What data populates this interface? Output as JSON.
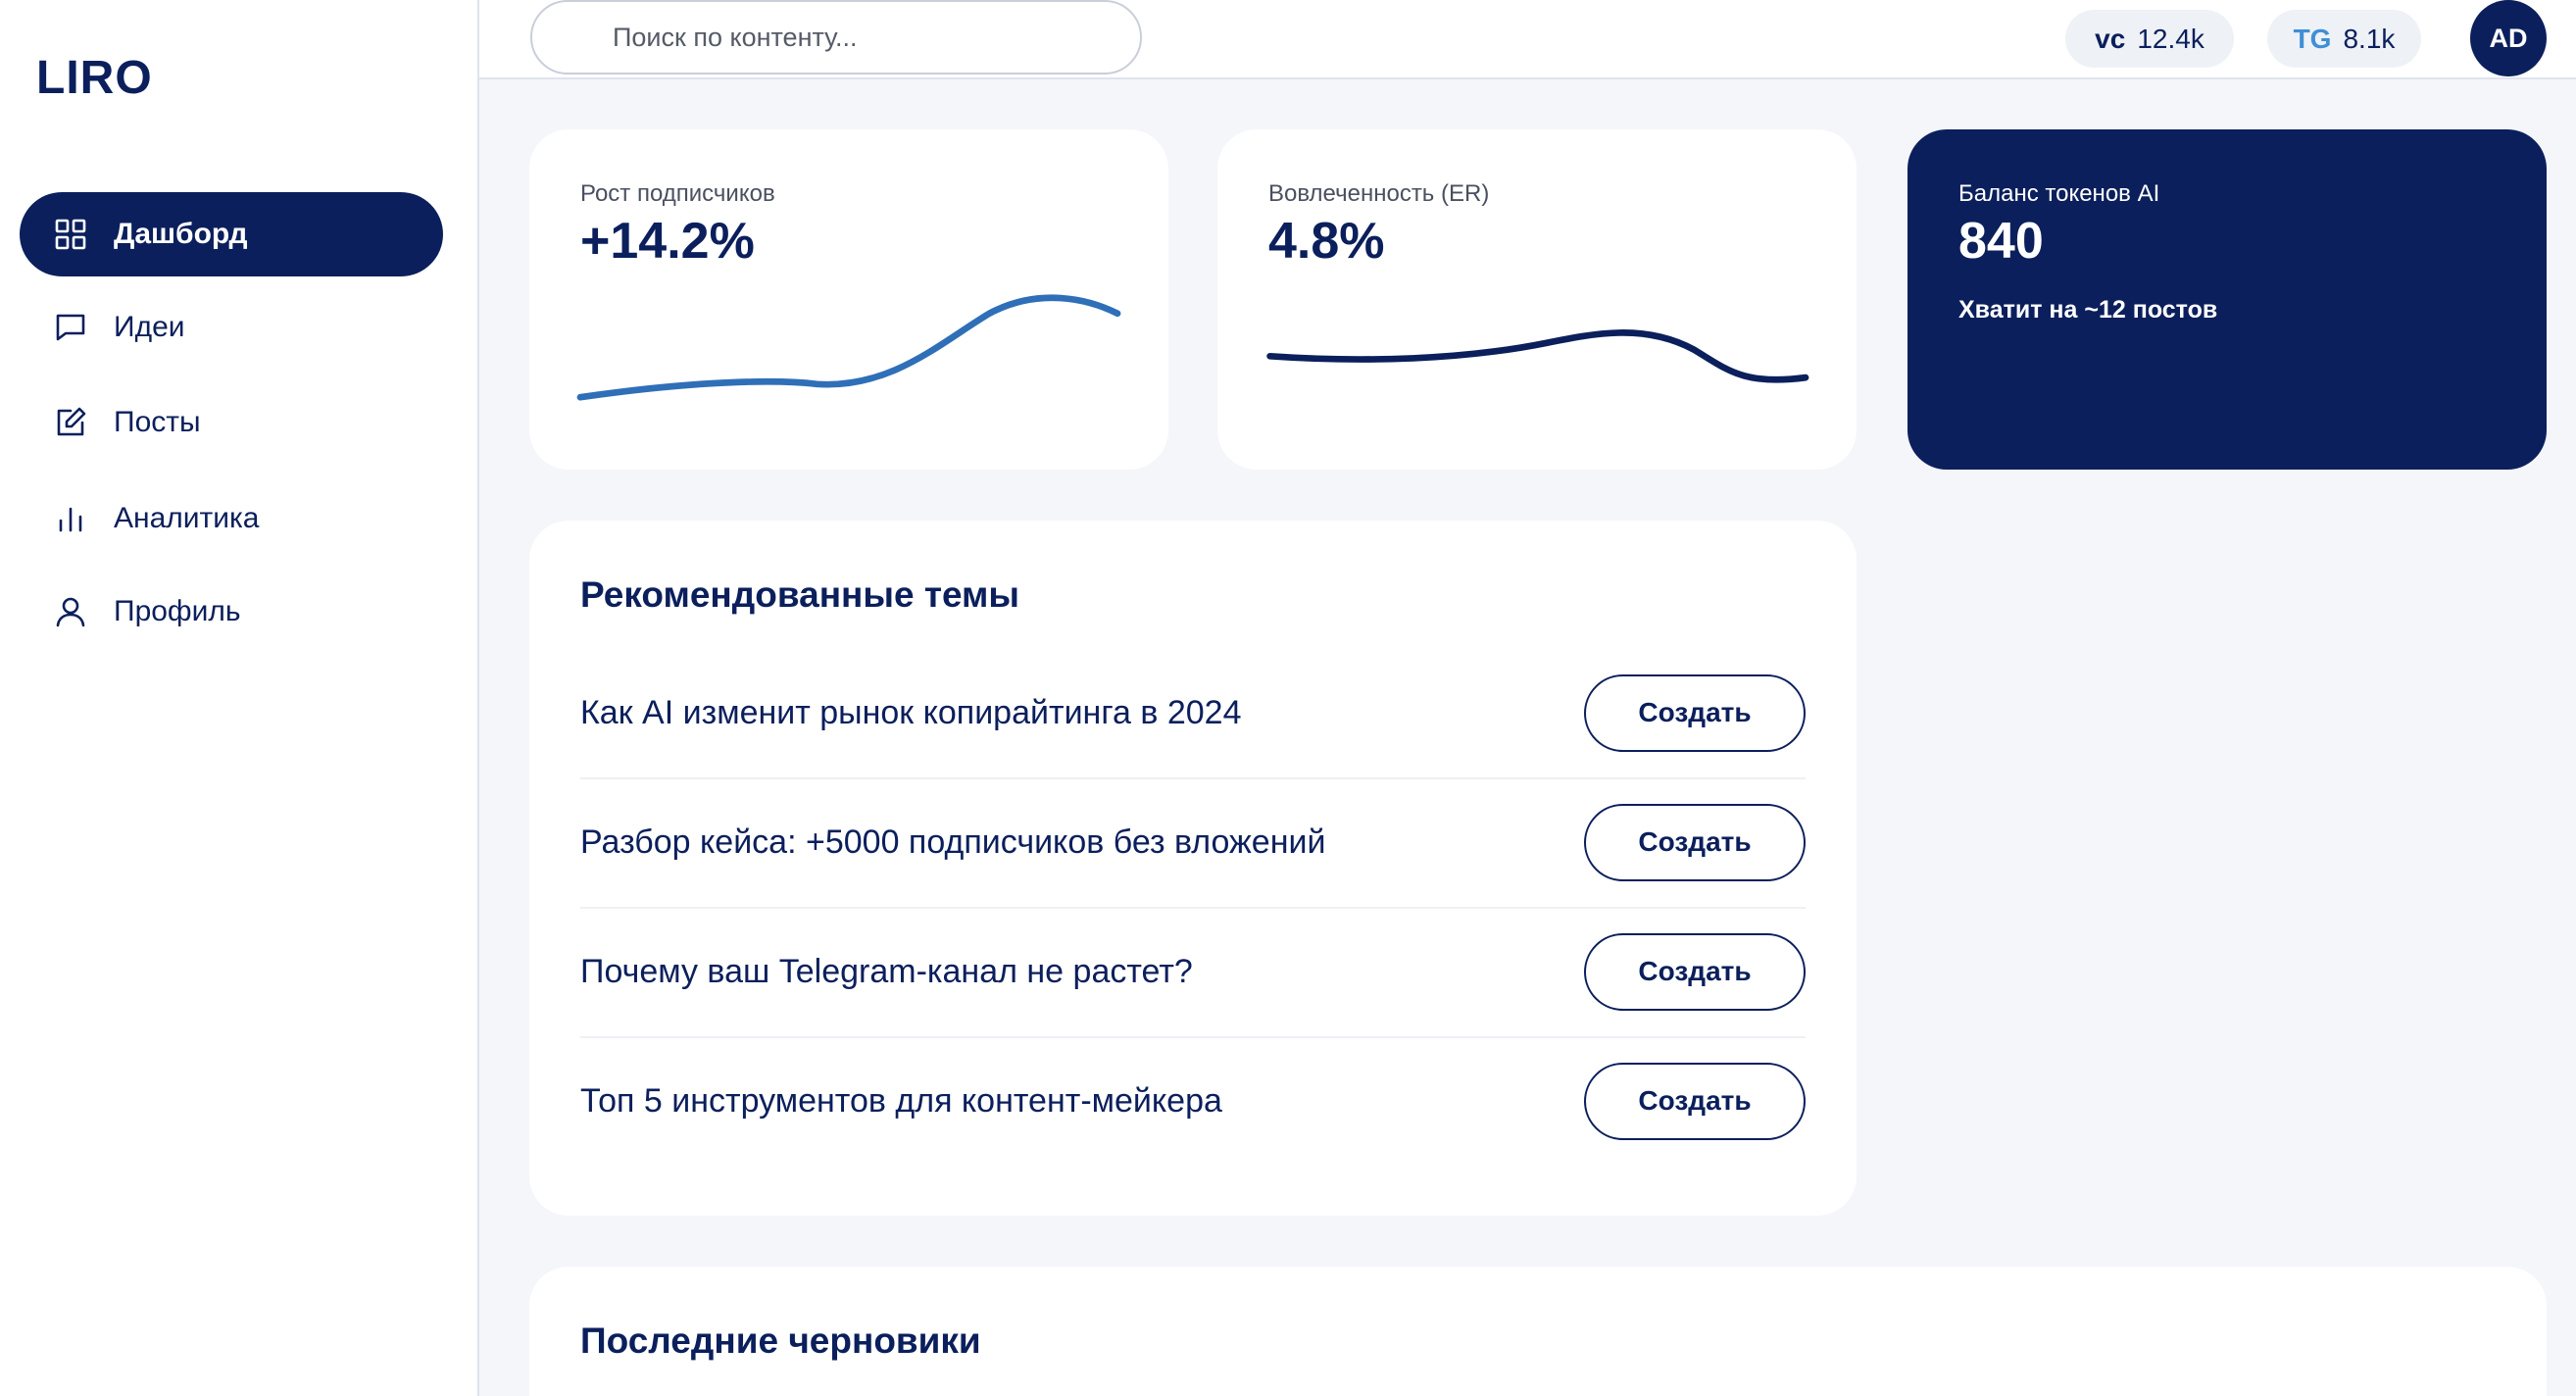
{
  "sidebar": {
    "logo": "LIRO",
    "nav": [
      {
        "label": "Дашборд",
        "active": true
      },
      {
        "label": "Идеи",
        "active": false
      },
      {
        "label": "Посты",
        "active": false
      },
      {
        "label": "Аналитика",
        "active": false
      },
      {
        "label": "Профиль",
        "active": false
      }
    ]
  },
  "header": {
    "search_placeholder": "Поиск по контенту...",
    "badges": [
      {
        "platform": "vc",
        "value": "12.4k"
      },
      {
        "platform": "TG",
        "value": "8.1k"
      }
    ],
    "avatar": "AD"
  },
  "stats": [
    {
      "label": "Рост подписчиков",
      "value": "+14.2%"
    },
    {
      "label": "Вовлеченность (ER)",
      "value": "4.8%"
    },
    {
      "label": "Баланс токенов AI",
      "value": "840",
      "note": "Хватит на ~12 постов"
    }
  ],
  "topics": {
    "title": "Рекомендованные темы",
    "items": [
      {
        "text": "Как AI изменит рынок копирайтинга в 2024",
        "button": "Создать"
      },
      {
        "text": "Разбор кейса: +5000 подписчиков без вложений",
        "button": "Создать"
      },
      {
        "text": "Почему ваш Telegram-канал не растет?",
        "button": "Создать"
      },
      {
        "text": "Топ 5 инструментов для контент-мейкера",
        "button": "Создать"
      }
    ]
  },
  "drafts": {
    "title": "Последние черновики"
  }
}
